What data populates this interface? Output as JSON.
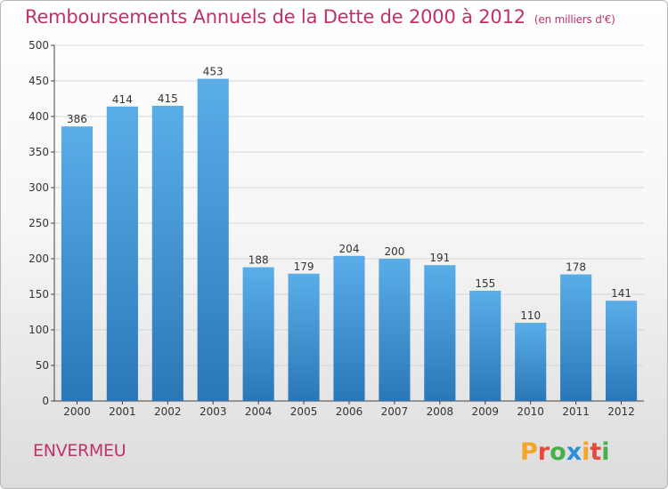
{
  "header": {
    "title": "Remboursements Annuels de la Dette de 2000 à 2012",
    "subtitle": "(en milliers d'€)"
  },
  "footer": {
    "commune": "ENVERMEU",
    "logo_text": "Proxiti"
  },
  "colors": {
    "bar_top": "#5aaee8",
    "bar_bottom": "#2a77b8",
    "title": "#c0306a",
    "grid": "#d6d6d6"
  },
  "chart_data": {
    "type": "bar",
    "categories": [
      "2000",
      "2001",
      "2002",
      "2003",
      "2004",
      "2005",
      "2006",
      "2007",
      "2008",
      "2009",
      "2010",
      "2011",
      "2012"
    ],
    "values": [
      386,
      414,
      415,
      453,
      188,
      179,
      204,
      200,
      191,
      155,
      110,
      178,
      141
    ],
    "ylim": [
      0,
      500
    ],
    "yticks": [
      0,
      50,
      100,
      150,
      200,
      250,
      300,
      350,
      400,
      450,
      500
    ],
    "grid": true
  }
}
